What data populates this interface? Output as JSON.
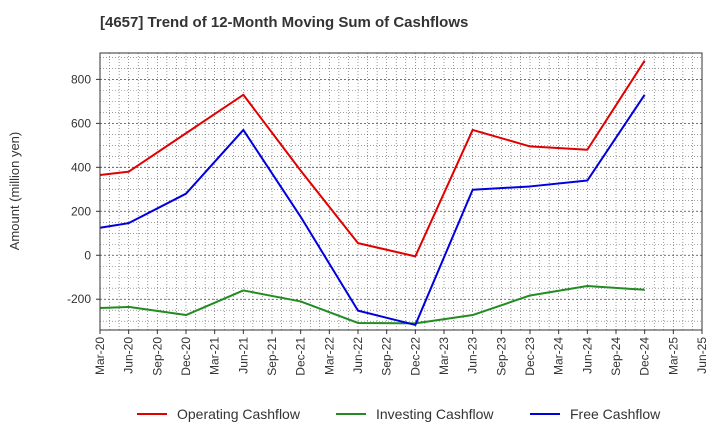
{
  "chart_data": {
    "type": "line",
    "title": "[4657]  Trend of 12-Month Moving Sum of Cashflows",
    "xlabel": "",
    "ylabel": "Amount (million yen)",
    "ylim": [
      -340,
      920
    ],
    "yticks": [
      -200,
      0,
      200,
      400,
      600,
      800
    ],
    "grid": true,
    "legend_position": "bottom",
    "categories": [
      "Mar-20",
      "Jun-20",
      "Sep-20",
      "Dec-20",
      "Mar-21",
      "Jun-21",
      "Sep-21",
      "Dec-21",
      "Mar-22",
      "Jun-22",
      "Sep-22",
      "Dec-22",
      "Mar-23",
      "Jun-23",
      "Sep-23",
      "Dec-23",
      "Mar-24",
      "Jun-24",
      "Sep-24",
      "Dec-24",
      "Mar-25",
      "Jun-25"
    ],
    "series": [
      {
        "name": "Operating Cashflow",
        "color": "#e00000",
        "points": [
          [
            0,
            365
          ],
          [
            1,
            380
          ],
          [
            3,
            555
          ],
          [
            5,
            730
          ],
          [
            7,
            385
          ],
          [
            9,
            55
          ],
          [
            11,
            -5
          ],
          [
            13,
            570
          ],
          [
            15,
            495
          ],
          [
            17,
            480
          ],
          [
            19,
            885
          ]
        ]
      },
      {
        "name": "Investing Cashflow",
        "color": "#228b22",
        "points": [
          [
            0,
            -240
          ],
          [
            1,
            -235
          ],
          [
            3,
            -272
          ],
          [
            5,
            -160
          ],
          [
            7,
            -210
          ],
          [
            9,
            -308
          ],
          [
            11,
            -310
          ],
          [
            13,
            -272
          ],
          [
            15,
            -183
          ],
          [
            17,
            -140
          ],
          [
            19,
            -157
          ]
        ]
      },
      {
        "name": "Free Cashflow",
        "color": "#0000dd",
        "points": [
          [
            0,
            125
          ],
          [
            1,
            146
          ],
          [
            3,
            280
          ],
          [
            5,
            570
          ],
          [
            7,
            175
          ],
          [
            9,
            -252
          ],
          [
            11,
            -317
          ],
          [
            13,
            298
          ],
          [
            15,
            313
          ],
          [
            17,
            340
          ],
          [
            19,
            730
          ]
        ]
      }
    ]
  }
}
